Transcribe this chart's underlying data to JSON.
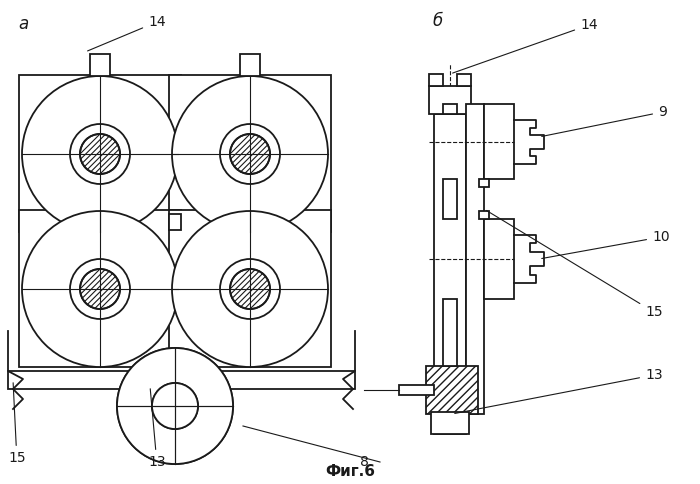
{
  "bg_color": "#ffffff",
  "line_color": "#1a1a1a",
  "lw": 1.3,
  "tlw": 0.8,
  "fig_label": "Фиг.6",
  "label_a": "а",
  "label_b": "б"
}
